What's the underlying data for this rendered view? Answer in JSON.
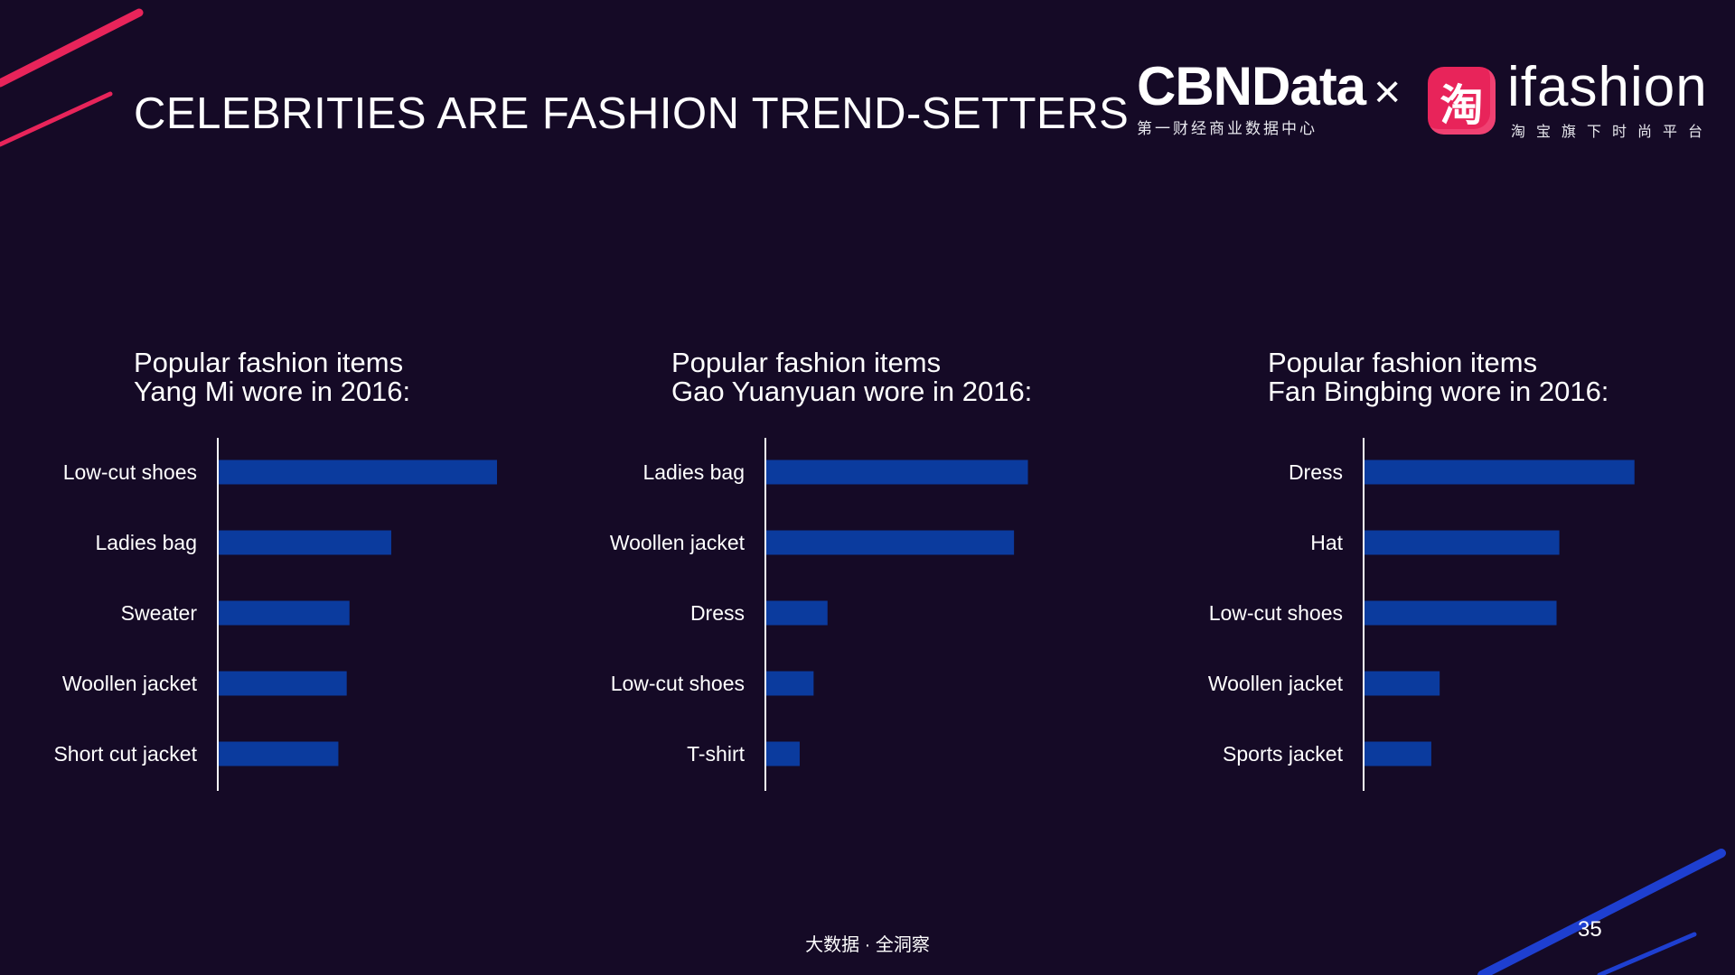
{
  "slide": {
    "title": "CELEBRITIES ARE FASHION TREND-SETTERS",
    "footer": "大数据 · 全洞察",
    "page_number": "35"
  },
  "logos": {
    "cbndata": {
      "name": "CBNData",
      "subtitle": "第一财经商业数据中心"
    },
    "times": "×",
    "taobao_icon_glyph": "淘",
    "ifashion": {
      "name": "ifashion",
      "subtitle": "淘宝旗下时尚平台"
    }
  },
  "colors": {
    "background": "#150a26",
    "bar": "#0b3b9e",
    "axis": "#ffffff",
    "accent_red": "#e8245a",
    "accent_blue": "#1e3fd0"
  },
  "chart_data": [
    {
      "type": "bar",
      "orientation": "horizontal",
      "title_lines": [
        "Popular fashion items",
        "Yang Mi wore in 2016:"
      ],
      "categories": [
        "Low-cut shoes",
        "Ladies bag",
        "Sweater",
        "Woollen jacket",
        "Short cut jacket"
      ],
      "values": [
        100,
        62,
        47,
        46,
        43
      ],
      "value_unit": "relative (no axis printed)"
    },
    {
      "type": "bar",
      "orientation": "horizontal",
      "title_lines": [
        "Popular fashion items",
        "Gao Yuanyuan wore in 2016:"
      ],
      "categories": [
        "Ladies bag",
        "Woollen jacket",
        "Dress",
        "Low-cut shoes",
        "T-shirt"
      ],
      "values": [
        94,
        89,
        22,
        17,
        12
      ],
      "value_unit": "relative (no axis printed)"
    },
    {
      "type": "bar",
      "orientation": "horizontal",
      "title_lines": [
        "Popular fashion items",
        "Fan Bingbing wore in 2016:"
      ],
      "categories": [
        "Dress",
        "Hat",
        "Low-cut shoes",
        "Woollen jacket",
        "Sports jacket"
      ],
      "values": [
        97,
        70,
        69,
        27,
        24
      ],
      "value_unit": "relative (no axis printed)"
    }
  ]
}
